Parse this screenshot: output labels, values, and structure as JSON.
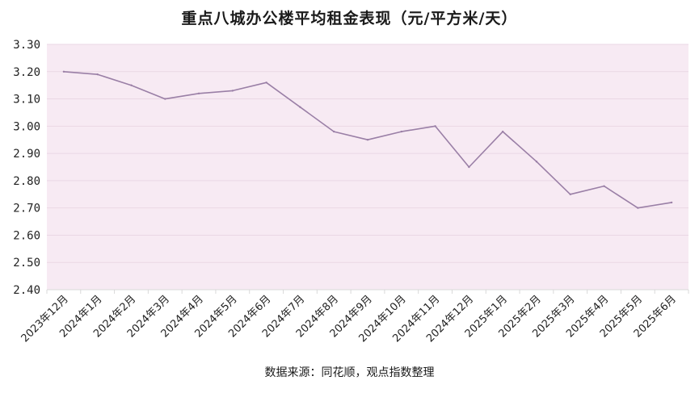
{
  "chart_data": {
    "type": "line",
    "title": "重点八城办公楼平均租金表现（元/平方米/天）",
    "source": "数据来源：同花顺，观点指数整理",
    "xlabel": "",
    "ylabel": "",
    "categories": [
      "2023年12月",
      "2024年1月",
      "2024年2月",
      "2024年3月",
      "2024年4月",
      "2024年5月",
      "2024年6月",
      "2024年7月",
      "2024年8月",
      "2024年9月",
      "2024年10月",
      "2024年11月",
      "2024年12月",
      "2025年1月",
      "2025年2月",
      "2025年3月",
      "2025年4月",
      "2025年5月",
      "2025年6月"
    ],
    "series": [
      {
        "values": [
          3.2,
          3.19,
          3.15,
          3.1,
          3.12,
          3.13,
          3.16,
          3.07,
          2.98,
          2.95,
          2.98,
          3.0,
          2.85,
          2.98,
          2.87,
          2.75,
          2.78,
          2.7,
          2.72
        ]
      }
    ],
    "ylim": [
      2.4,
      3.3
    ],
    "yticks": [
      "2.40",
      "2.50",
      "2.60",
      "2.70",
      "2.80",
      "2.90",
      "3.00",
      "3.10",
      "3.20",
      "3.30"
    ],
    "grid": true,
    "legend": "none",
    "colors": {
      "plot_background": "#f7eaf3",
      "line": "#9a7fa6",
      "grid": "#ead7e4"
    }
  }
}
